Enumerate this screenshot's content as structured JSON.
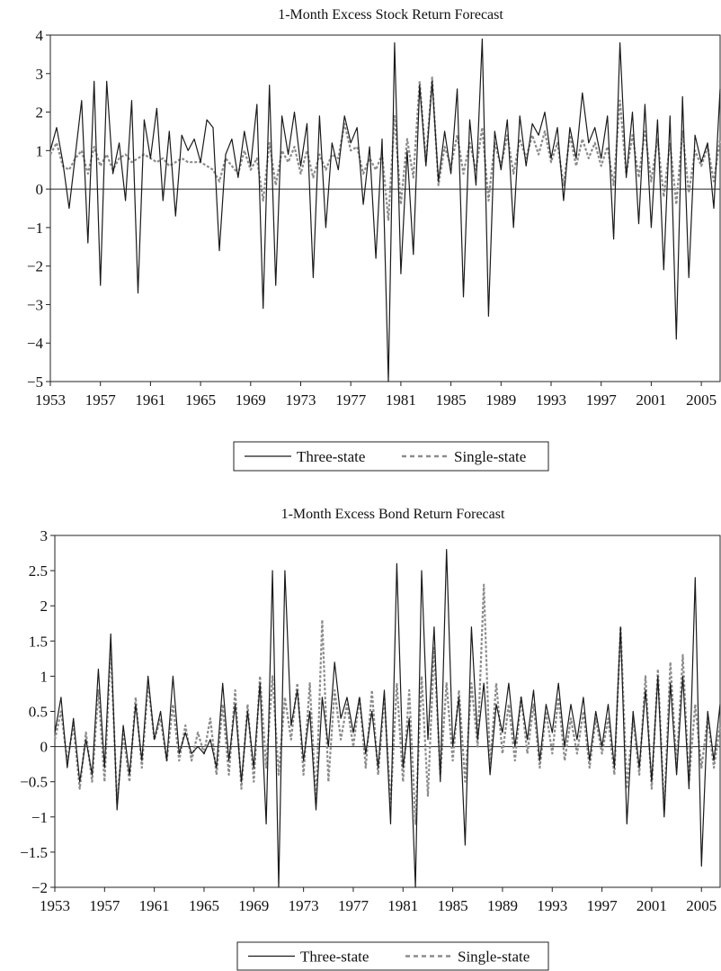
{
  "chart_data": [
    {
      "type": "line",
      "title": "1-Month Excess Stock Return Forecast",
      "xlabel": "",
      "ylabel": "",
      "xlim": [
        1953,
        2006.5
      ],
      "ylim": [
        -5,
        4
      ],
      "x_ticks": [
        "1953",
        "1957",
        "1961",
        "1965",
        "1969",
        "1973",
        "1977",
        "1981",
        "1985",
        "1989",
        "1993",
        "1997",
        "2001",
        "2005"
      ],
      "y_ticks": [
        "4",
        "3",
        "2",
        "1",
        "0",
        "−1",
        "−2",
        "−3",
        "−4",
        "−5"
      ],
      "grid": false,
      "legend_position": "bottom",
      "series": [
        {
          "name": "Three-state",
          "style": "solid",
          "color": "#1a1a1a",
          "x": [
            1953.0,
            1953.5,
            1954.0,
            1954.5,
            1955.0,
            1955.5,
            1956.0,
            1956.5,
            1957.0,
            1957.5,
            1958.0,
            1958.5,
            1959.0,
            1959.5,
            1960.0,
            1960.5,
            1961.0,
            1961.5,
            1962.0,
            1962.5,
            1963.0,
            1963.5,
            1964.0,
            1964.5,
            1965.0,
            1965.5,
            1966.0,
            1966.5,
            1967.0,
            1967.5,
            1968.0,
            1968.5,
            1969.0,
            1969.5,
            1970.0,
            1970.5,
            1971.0,
            1971.5,
            1972.0,
            1972.5,
            1973.0,
            1973.5,
            1974.0,
            1974.5,
            1975.0,
            1975.5,
            1976.0,
            1976.5,
            1977.0,
            1977.5,
            1978.0,
            1978.5,
            1979.0,
            1979.5,
            1980.0,
            1980.5,
            1981.0,
            1981.5,
            1982.0,
            1982.5,
            1983.0,
            1983.5,
            1984.0,
            1984.5,
            1985.0,
            1985.5,
            1986.0,
            1986.5,
            1987.0,
            1987.5,
            1988.0,
            1988.5,
            1989.0,
            1989.5,
            1990.0,
            1990.5,
            1991.0,
            1991.5,
            1992.0,
            1992.5,
            1993.0,
            1993.5,
            1994.0,
            1994.5,
            1995.0,
            1995.5,
            1996.0,
            1996.5,
            1997.0,
            1997.5,
            1998.0,
            1998.5,
            1999.0,
            1999.5,
            2000.0,
            2000.5,
            2001.0,
            2001.5,
            2002.0,
            2002.5,
            2003.0,
            2003.5,
            2004.0,
            2004.5,
            2005.0,
            2005.5,
            2006.0,
            2006.5
          ],
          "values": [
            1.0,
            1.6,
            0.7,
            -0.5,
            0.9,
            2.3,
            -1.4,
            2.8,
            -2.5,
            2.8,
            0.4,
            1.2,
            -0.3,
            2.3,
            -2.7,
            1.8,
            0.8,
            2.1,
            -0.3,
            1.5,
            -0.7,
            1.4,
            1.0,
            1.3,
            0.7,
            1.8,
            1.6,
            -1.6,
            0.9,
            1.3,
            0.3,
            1.5,
            0.6,
            2.2,
            -3.1,
            2.7,
            -2.5,
            1.9,
            0.9,
            2.0,
            0.6,
            1.7,
            -2.3,
            1.9,
            -1.0,
            1.2,
            0.5,
            1.9,
            1.2,
            1.6,
            -0.4,
            1.1,
            -1.8,
            1.3,
            -5.0,
            3.8,
            -2.2,
            1.0,
            -1.7,
            2.7,
            0.6,
            2.8,
            0.2,
            1.5,
            0.4,
            2.6,
            -2.8,
            1.8,
            0.1,
            3.9,
            -3.3,
            1.5,
            0.5,
            1.8,
            -1.0,
            1.9,
            0.6,
            1.7,
            1.4,
            2.0,
            0.8,
            1.6,
            -0.3,
            1.6,
            0.8,
            2.5,
            1.2,
            1.6,
            0.8,
            1.9,
            -1.3,
            3.8,
            0.3,
            2.0,
            -0.9,
            2.2,
            -1.0,
            1.8,
            -2.1,
            1.9,
            -3.9,
            2.4,
            -2.3,
            1.4,
            0.7,
            1.2,
            -0.5,
            2.6
          ]
        },
        {
          "name": "Single-state",
          "style": "dashed",
          "color": "#8c8c8c",
          "x": [
            1953.0,
            1953.5,
            1954.0,
            1954.5,
            1955.0,
            1955.5,
            1956.0,
            1956.5,
            1957.0,
            1957.5,
            1958.0,
            1958.5,
            1959.0,
            1959.5,
            1960.0,
            1960.5,
            1961.0,
            1961.5,
            1962.0,
            1962.5,
            1963.0,
            1963.5,
            1964.0,
            1964.5,
            1965.0,
            1965.5,
            1966.0,
            1966.5,
            1967.0,
            1967.5,
            1968.0,
            1968.5,
            1969.0,
            1969.5,
            1970.0,
            1970.5,
            1971.0,
            1971.5,
            1972.0,
            1972.5,
            1973.0,
            1973.5,
            1974.0,
            1974.5,
            1975.0,
            1975.5,
            1976.0,
            1976.5,
            1977.0,
            1977.5,
            1978.0,
            1978.5,
            1979.0,
            1979.5,
            1980.0,
            1980.5,
            1981.0,
            1981.5,
            1982.0,
            1982.5,
            1983.0,
            1983.5,
            1984.0,
            1984.5,
            1985.0,
            1985.5,
            1986.0,
            1986.5,
            1987.0,
            1987.5,
            1988.0,
            1988.5,
            1989.0,
            1989.5,
            1990.0,
            1990.5,
            1991.0,
            1991.5,
            1992.0,
            1992.5,
            1993.0,
            1993.5,
            1994.0,
            1994.5,
            1995.0,
            1995.5,
            1996.0,
            1996.5,
            1997.0,
            1997.5,
            1998.0,
            1998.5,
            1999.0,
            1999.5,
            2000.0,
            2000.5,
            2001.0,
            2001.5,
            2002.0,
            2002.5,
            2003.0,
            2003.5,
            2004.0,
            2004.5,
            2005.0,
            2005.5,
            2006.0,
            2006.5
          ],
          "values": [
            0.9,
            1.2,
            0.6,
            0.5,
            0.8,
            1.0,
            0.4,
            1.1,
            0.6,
            0.9,
            0.5,
            0.8,
            0.9,
            0.7,
            0.8,
            0.9,
            0.8,
            0.7,
            0.8,
            0.6,
            0.7,
            0.8,
            0.7,
            0.7,
            0.7,
            0.6,
            0.5,
            0.2,
            0.8,
            0.6,
            0.4,
            1.0,
            0.5,
            0.8,
            -0.3,
            1.2,
            0.1,
            1.0,
            0.7,
            1.1,
            0.4,
            1.0,
            0.3,
            0.9,
            0.5,
            0.9,
            0.8,
            1.7,
            1.0,
            1.1,
            0.4,
            0.8,
            0.5,
            0.9,
            -0.8,
            1.9,
            -0.4,
            1.3,
            0.3,
            2.8,
            0.7,
            2.9,
            0.1,
            1.1,
            0.6,
            1.4,
            0.4,
            1.2,
            0.5,
            1.6,
            -0.3,
            1.2,
            0.6,
            1.4,
            0.4,
            1.3,
            0.8,
            1.4,
            0.9,
            1.5,
            0.7,
            1.2,
            0.1,
            1.4,
            0.6,
            1.3,
            0.8,
            1.2,
            0.6,
            1.1,
            0.1,
            2.3,
            0.4,
            1.4,
            0.3,
            1.5,
            0.2,
            1.3,
            -0.2,
            1.2,
            -0.4,
            1.5,
            -0.1,
            1.0,
            0.6,
            1.1,
            0.2,
            1.3
          ]
        }
      ]
    },
    {
      "type": "line",
      "title": "1-Month Excess Bond Return Forecast",
      "xlabel": "",
      "ylabel": "",
      "xlim": [
        1953,
        2006.5
      ],
      "ylim": [
        -2,
        3
      ],
      "x_ticks": [
        "1953",
        "1957",
        "1961",
        "1965",
        "1969",
        "1973",
        "1977",
        "1981",
        "1985",
        "1989",
        "1993",
        "1997",
        "2001",
        "2005"
      ],
      "y_ticks": [
        "3",
        "2.5",
        "2",
        "1.5",
        "1",
        "0.5",
        "0",
        "−0.5",
        "−1",
        "−1.5",
        "−2"
      ],
      "grid": false,
      "legend_position": "bottom",
      "series": [
        {
          "name": "Three-state",
          "style": "solid",
          "color": "#1a1a1a",
          "x": [
            1953.0,
            1953.5,
            1954.0,
            1954.5,
            1955.0,
            1955.5,
            1956.0,
            1956.5,
            1957.0,
            1957.5,
            1958.0,
            1958.5,
            1959.0,
            1959.5,
            1960.0,
            1960.5,
            1961.0,
            1961.5,
            1962.0,
            1962.5,
            1963.0,
            1963.5,
            1964.0,
            1964.5,
            1965.0,
            1965.5,
            1966.0,
            1966.5,
            1967.0,
            1967.5,
            1968.0,
            1968.5,
            1969.0,
            1969.5,
            1970.0,
            1970.5,
            1971.0,
            1971.5,
            1972.0,
            1972.5,
            1973.0,
            1973.5,
            1974.0,
            1974.5,
            1975.0,
            1975.5,
            1976.0,
            1976.5,
            1977.0,
            1977.5,
            1978.0,
            1978.5,
            1979.0,
            1979.5,
            1980.0,
            1980.5,
            1981.0,
            1981.5,
            1982.0,
            1982.5,
            1983.0,
            1983.5,
            1984.0,
            1984.5,
            1985.0,
            1985.5,
            1986.0,
            1986.5,
            1987.0,
            1987.5,
            1988.0,
            1988.5,
            1989.0,
            1989.5,
            1990.0,
            1990.5,
            1991.0,
            1991.5,
            1992.0,
            1992.5,
            1993.0,
            1993.5,
            1994.0,
            1994.5,
            1995.0,
            1995.5,
            1996.0,
            1996.5,
            1997.0,
            1997.5,
            1998.0,
            1998.5,
            1999.0,
            1999.5,
            2000.0,
            2000.5,
            2001.0,
            2001.5,
            2002.0,
            2002.5,
            2003.0,
            2003.5,
            2004.0,
            2004.5,
            2005.0,
            2005.5,
            2006.0,
            2006.5
          ],
          "values": [
            0.2,
            0.7,
            -0.3,
            0.4,
            -0.5,
            0.1,
            -0.4,
            1.1,
            -0.3,
            1.6,
            -0.9,
            0.3,
            -0.4,
            0.6,
            -0.2,
            1.0,
            0.1,
            0.5,
            -0.2,
            1.0,
            -0.1,
            0.2,
            -0.1,
            0.0,
            -0.1,
            0.1,
            -0.3,
            0.9,
            -0.2,
            0.6,
            -0.5,
            0.5,
            -0.3,
            0.9,
            -1.1,
            2.5,
            -2.0,
            2.5,
            0.3,
            0.8,
            -0.2,
            0.5,
            -0.9,
            0.7,
            0.0,
            1.2,
            0.4,
            0.7,
            0.2,
            0.7,
            -0.1,
            0.5,
            -0.3,
            0.8,
            -1.1,
            2.6,
            -0.3,
            0.4,
            -2.0,
            2.5,
            0.1,
            1.7,
            -0.5,
            2.8,
            0.0,
            0.7,
            -1.4,
            1.7,
            0.1,
            0.9,
            -0.4,
            0.6,
            0.2,
            0.9,
            0.0,
            0.7,
            0.1,
            0.8,
            -0.2,
            0.6,
            0.2,
            0.9,
            0.0,
            0.6,
            0.1,
            0.7,
            -0.2,
            0.5,
            0.0,
            0.6,
            -0.3,
            1.7,
            -1.1,
            0.5,
            -0.3,
            0.8,
            -0.5,
            1.0,
            -1.0,
            0.9,
            -0.4,
            1.0,
            -0.6,
            2.4,
            -1.7,
            0.5,
            -0.2,
            0.6
          ]
        },
        {
          "name": "Single-state",
          "style": "dashed",
          "color": "#8c8c8c",
          "x": [
            1953.0,
            1953.5,
            1954.0,
            1954.5,
            1955.0,
            1955.5,
            1956.0,
            1956.5,
            1957.0,
            1957.5,
            1958.0,
            1958.5,
            1959.0,
            1959.5,
            1960.0,
            1960.5,
            1961.0,
            1961.5,
            1962.0,
            1962.5,
            1963.0,
            1963.5,
            1964.0,
            1964.5,
            1965.0,
            1965.5,
            1966.0,
            1966.5,
            1967.0,
            1967.5,
            1968.0,
            1968.5,
            1969.0,
            1969.5,
            1970.0,
            1970.5,
            1971.0,
            1971.5,
            1972.0,
            1972.5,
            1973.0,
            1973.5,
            1974.0,
            1974.5,
            1975.0,
            1975.5,
            1976.0,
            1976.5,
            1977.0,
            1977.5,
            1978.0,
            1978.5,
            1979.0,
            1979.5,
            1980.0,
            1980.5,
            1981.0,
            1981.5,
            1982.0,
            1982.5,
            1983.0,
            1983.5,
            1984.0,
            1984.5,
            1985.0,
            1985.5,
            1986.0,
            1986.5,
            1987.0,
            1987.5,
            1988.0,
            1988.5,
            1989.0,
            1989.5,
            1990.0,
            1990.5,
            1991.0,
            1991.5,
            1992.0,
            1992.5,
            1993.0,
            1993.5,
            1994.0,
            1994.5,
            1995.0,
            1995.5,
            1996.0,
            1996.5,
            1997.0,
            1997.5,
            1998.0,
            1998.5,
            1999.0,
            1999.5,
            2000.0,
            2000.5,
            2001.0,
            2001.5,
            2002.0,
            2002.5,
            2003.0,
            2003.5,
            2004.0,
            2004.5,
            2005.0,
            2005.5,
            2006.0,
            2006.5
          ],
          "values": [
            0.1,
            0.5,
            -0.2,
            0.3,
            -0.6,
            0.2,
            -0.5,
            0.8,
            -0.5,
            1.4,
            -0.8,
            0.2,
            -0.5,
            0.7,
            -0.3,
            0.9,
            0.1,
            0.4,
            -0.2,
            0.6,
            -0.2,
            0.3,
            -0.2,
            0.2,
            -0.1,
            0.4,
            -0.4,
            0.6,
            -0.4,
            0.8,
            -0.6,
            0.6,
            -0.5,
            1.0,
            -0.3,
            1.0,
            -0.4,
            0.7,
            0.1,
            0.9,
            -0.4,
            0.9,
            -0.8,
            1.8,
            -0.5,
            0.8,
            0.1,
            0.6,
            0.0,
            0.7,
            -0.3,
            0.8,
            -0.4,
            0.7,
            -0.8,
            0.9,
            -0.5,
            0.8,
            -1.1,
            1.0,
            -0.7,
            1.4,
            -0.4,
            0.9,
            -0.2,
            0.8,
            -0.5,
            0.9,
            0.0,
            2.3,
            -0.3,
            0.9,
            -0.1,
            0.6,
            -0.2,
            0.7,
            -0.1,
            0.6,
            -0.3,
            0.5,
            -0.1,
            0.7,
            -0.2,
            0.4,
            -0.1,
            0.5,
            -0.3,
            0.4,
            -0.1,
            0.4,
            -0.4,
            1.7,
            -0.6,
            0.4,
            -0.4,
            1.0,
            -0.6,
            1.1,
            -0.9,
            1.2,
            -0.3,
            1.3,
            -0.5,
            0.6,
            -0.3,
            0.4,
            -0.3,
            0.3
          ]
        }
      ]
    }
  ]
}
